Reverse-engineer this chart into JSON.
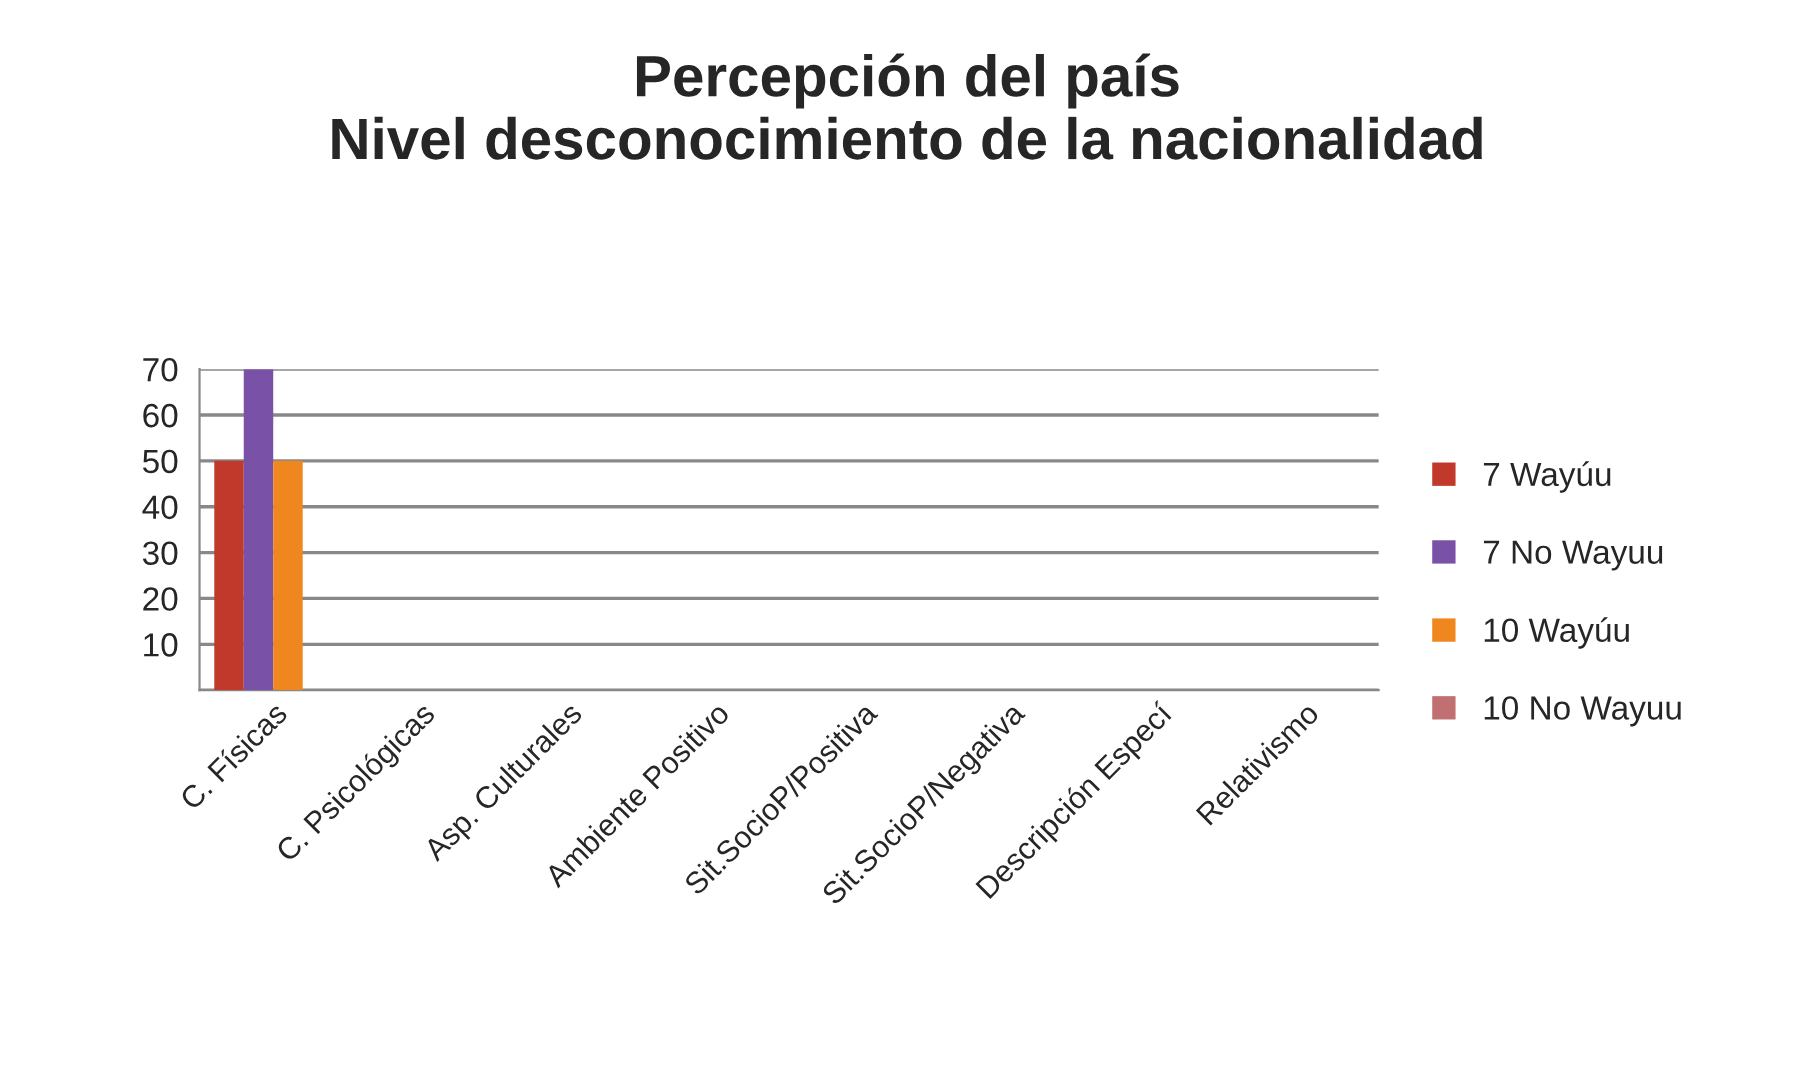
{
  "chart_data": {
    "type": "bar",
    "title": "Percepción del país\nNivel desconocimiento de la nacionalidad",
    "categories": [
      "C. Físicas",
      "C. Psicológicas",
      "Asp. Culturales",
      "Ambiente Positivo",
      "Sit.SocioP/Positiva",
      "Sit.SocioP/Negativa",
      "Descripción Especí",
      "Relativismo"
    ],
    "series": [
      {
        "name": "7 Wayúu",
        "color": "#c0392b",
        "values": [
          50,
          0,
          0,
          0,
          0,
          0,
          0,
          0
        ]
      },
      {
        "name": "7 No Wayuu",
        "color": "#7952a8",
        "values": [
          70,
          0,
          0,
          0,
          0,
          0,
          0,
          0
        ]
      },
      {
        "name": "10 Wayúu",
        "color": "#f0861e",
        "values": [
          50,
          0,
          0,
          0,
          0,
          0,
          0,
          0
        ]
      },
      {
        "name": "10 No Wayuu",
        "color": "#c07070",
        "values": [
          0,
          0,
          0,
          0,
          0,
          0,
          0,
          0
        ]
      }
    ],
    "ylim": [
      0,
      70
    ],
    "yticks": [
      {
        "value": 0,
        "label": null
      },
      10,
      20,
      30,
      40,
      50,
      60,
      70
    ],
    "grid": "y",
    "legend": "right"
  }
}
